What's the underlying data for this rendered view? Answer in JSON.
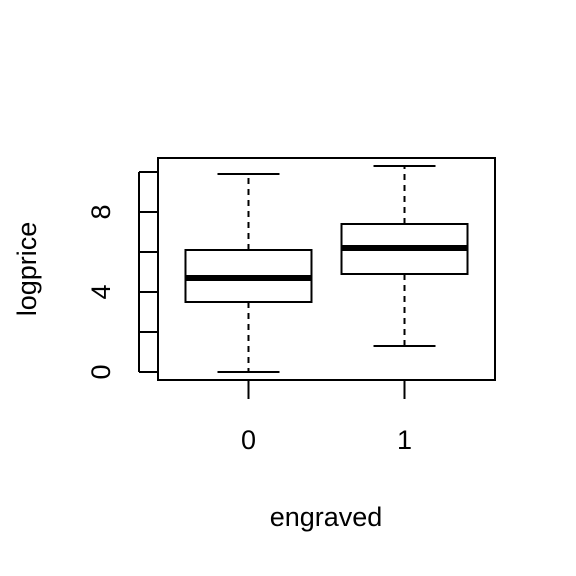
{
  "chart_data": {
    "type": "box",
    "xlabel": "engraved",
    "ylabel": "logprice",
    "categories": [
      "0",
      "1"
    ],
    "y_ticks": [
      0,
      2,
      4,
      6,
      8,
      10
    ],
    "y_tick_labels": [
      "0",
      "",
      "4",
      "",
      "8",
      ""
    ],
    "ylim": [
      -0.4,
      10.7
    ],
    "boxes": [
      {
        "category": "0",
        "whisker_low": 0.0,
        "q1": 3.5,
        "median": 4.7,
        "q3": 6.1,
        "whisker_high": 9.9
      },
      {
        "category": "1",
        "whisker_low": 1.3,
        "q1": 4.9,
        "median": 6.2,
        "q3": 7.4,
        "whisker_high": 10.3
      }
    ]
  }
}
